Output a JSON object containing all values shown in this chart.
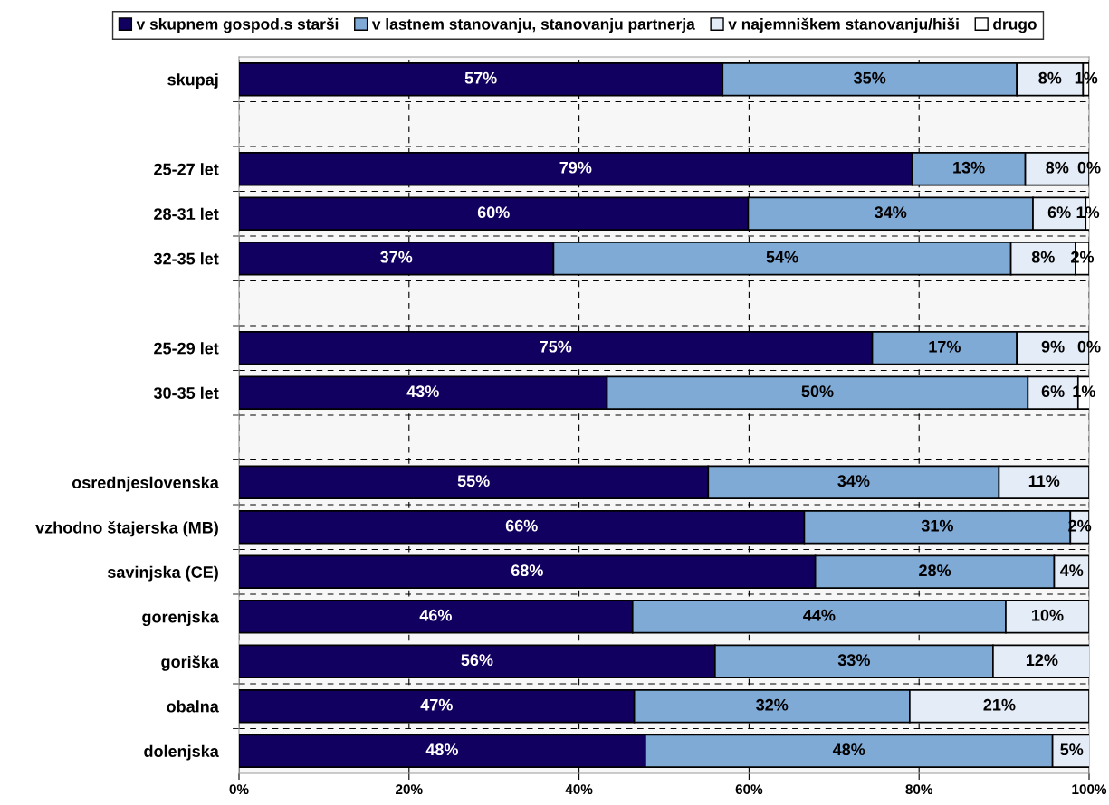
{
  "chart_data": {
    "type": "bar",
    "orientation": "horizontal",
    "stacked": true,
    "categories": [
      "skupaj",
      null,
      "25-27 let",
      "28-31 let",
      "32-35 let",
      null,
      "25-29 let",
      "30-35 let",
      null,
      "osrednjeslovenska",
      "vzhodno štajerska (MB)",
      "savinjska (CE)",
      "gorenjska",
      "goriška",
      "obalna",
      "dolenjska"
    ],
    "series": [
      {
        "name": "v skupnem gospod.s starši",
        "color": "#120060",
        "values": [
          56.9,
          null,
          79.2,
          59.9,
          37.0,
          null,
          74.5,
          43.3,
          null,
          55.2,
          66.5,
          67.8,
          46.3,
          56.0,
          46.5,
          47.8
        ],
        "value_labels": [
          "57%",
          null,
          "79%",
          "60%",
          "37%",
          null,
          "75%",
          "43%",
          null,
          "55%",
          "66%",
          "68%",
          "46%",
          "56%",
          "47%",
          "48%"
        ]
      },
      {
        "name": "v lastnem stanovanju, stanovanju partnerja",
        "color": "#80aad6",
        "values": [
          34.6,
          null,
          13.3,
          33.5,
          53.8,
          null,
          17.0,
          49.5,
          null,
          34.2,
          31.3,
          28.1,
          43.9,
          32.7,
          32.4,
          47.9
        ],
        "value_labels": [
          "35%",
          null,
          "13%",
          "34%",
          "54%",
          null,
          "17%",
          "50%",
          null,
          "34%",
          "31%",
          "28%",
          "44%",
          "33%",
          "32%",
          "48%"
        ]
      },
      {
        "name": "v najemniškem stanovanju/hiši",
        "color": "#e4ecf7",
        "values": [
          7.8,
          null,
          7.5,
          6.2,
          7.6,
          null,
          8.5,
          5.9,
          null,
          10.6,
          2.2,
          4.1,
          9.8,
          11.5,
          21.1,
          4.5
        ],
        "value_labels": [
          "8%",
          null,
          "8%",
          "6%",
          "8%",
          null,
          "9%",
          "6%",
          null,
          "11%",
          "2%",
          "4%",
          "10%",
          "12%",
          "21%",
          "5%"
        ]
      },
      {
        "name": "drugo",
        "color": "#ffffff",
        "values": [
          0.7,
          null,
          0.0,
          0.5,
          1.6,
          null,
          0.0,
          1.4,
          null,
          0.0,
          0.0,
          0.0,
          0.0,
          0.0,
          0.0,
          0.0
        ],
        "value_labels": [
          "1%",
          null,
          "0%",
          "1%",
          "2%",
          null,
          "0%",
          "1%",
          null,
          null,
          null,
          null,
          null,
          null,
          null,
          null
        ]
      }
    ],
    "xlim": [
      0,
      100
    ],
    "xticks": [
      {
        "value": 0,
        "label": "0%"
      },
      {
        "value": 20,
        "label": "20%"
      },
      {
        "value": 40,
        "label": "40%"
      },
      {
        "value": 60,
        "label": "60%"
      },
      {
        "value": 80,
        "label": "80%"
      },
      {
        "value": 100,
        "label": "100%"
      }
    ],
    "grid": true,
    "legend": "top"
  }
}
